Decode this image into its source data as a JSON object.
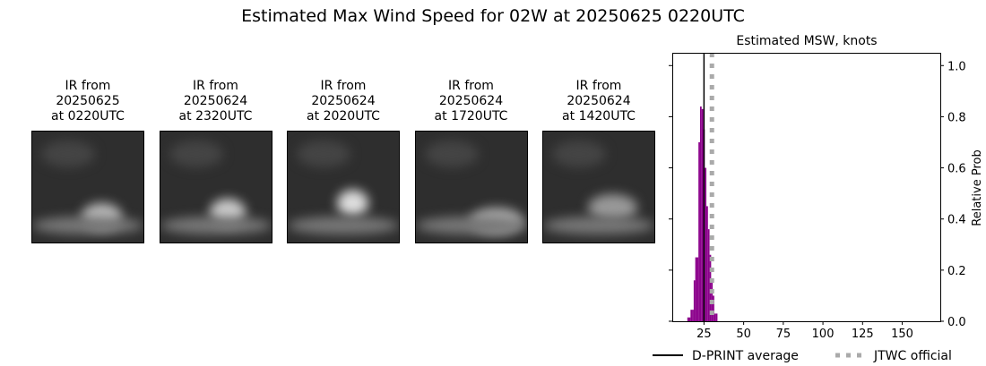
{
  "title": "Estimated Max Wind Speed for 02W at 20250625 0220UTC",
  "panels": [
    {
      "line1": "IR from",
      "line2": "20250625",
      "line3": "at 0220UTC"
    },
    {
      "line1": "IR from",
      "line2": "20250624",
      "line3": "at 2320UTC"
    },
    {
      "line1": "IR from",
      "line2": "20250624",
      "line3": "at 2020UTC"
    },
    {
      "line1": "IR from",
      "line2": "20250624",
      "line3": "at 1720UTC"
    },
    {
      "line1": "IR from",
      "line2": "20250624",
      "line3": "at 1420UTC"
    }
  ],
  "chart_data": {
    "type": "bar",
    "title": "Estimated MSW, knots",
    "ylabel": "Relative Prob",
    "xlim": [
      5,
      174
    ],
    "ylim": [
      0,
      1.05
    ],
    "xticks": [
      25,
      50,
      75,
      100,
      125,
      150
    ],
    "yticks": [
      "0.0",
      "0.2",
      "0.4",
      "0.6",
      "0.8",
      "1.0"
    ],
    "bar_color": "#8b008b",
    "x": [
      15,
      16,
      17,
      18,
      19,
      20,
      21,
      22,
      23,
      24,
      25,
      26,
      27,
      28,
      29,
      30,
      31,
      32,
      33
    ],
    "values": [
      0.015,
      0.015,
      0.045,
      0.045,
      0.16,
      0.25,
      0.25,
      0.7,
      0.84,
      0.83,
      0.75,
      0.6,
      0.45,
      0.36,
      0.26,
      0.16,
      0.1,
      0.03,
      0.03
    ],
    "dprint_average": 25,
    "jtwc_official": 30,
    "legend": [
      {
        "label": "D-PRINT average",
        "color": "#000000"
      },
      {
        "label": "JTWC official",
        "color": "#aaaaaa"
      }
    ]
  }
}
